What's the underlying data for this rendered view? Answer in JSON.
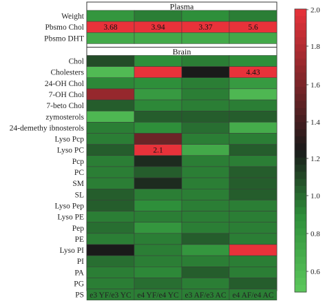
{
  "chart_data": {
    "type": "heatmap",
    "columns": [
      "e3 YF/e3 YC",
      "e4 YF/e4 YC",
      "e3 AF/e3 AC",
      "e4 AF/e4 AC"
    ],
    "sections": [
      {
        "title": "Plasma",
        "rows": [
          {
            "label": "Weight",
            "values": [
              0.85,
              0.95,
              0.9,
              0.95
            ]
          },
          {
            "label": "Pbsmo Chol",
            "values": [
              2.0,
              2.0,
              2.0,
              2.0
            ],
            "annotations": [
              "3.68",
              "3.94",
              "3.37",
              "5.6"
            ]
          },
          {
            "label": "Pbsmo DHT",
            "values": [
              0.72,
              0.72,
              0.72,
              0.72
            ]
          }
        ]
      },
      {
        "title": "Brain",
        "rows": [
          {
            "label": "Chol",
            "values": [
              1.1,
              0.9,
              0.95,
              0.9
            ]
          },
          {
            "label": "Cholesters",
            "values": [
              0.6,
              2.0,
              1.25,
              2.0
            ],
            "annotations": [
              "",
              "",
              "",
              "4.43"
            ]
          },
          {
            "label": "24-OH Chol",
            "values": [
              0.92,
              0.9,
              0.95,
              0.82
            ]
          },
          {
            "label": "7-OH Chol",
            "values": [
              1.7,
              0.82,
              0.95,
              0.62
            ]
          },
          {
            "label": "7-beto Chol",
            "values": [
              1.05,
              0.92,
              0.95,
              0.95
            ]
          },
          {
            "label": "zymosterols",
            "values": [
              0.62,
              1.05,
              1.05,
              1.05
            ]
          },
          {
            "label": "24-demethy ibnosterols",
            "values": [
              0.95,
              0.9,
              1.0,
              0.7
            ]
          },
          {
            "label": "Lyso Pcp",
            "values": [
              0.95,
              1.55,
              0.95,
              0.95
            ]
          },
          {
            "label": "Lyso PC",
            "values": [
              1.05,
              2.0,
              0.72,
              1.05
            ],
            "annotations": [
              "",
              "2.1",
              "",
              ""
            ]
          },
          {
            "label": "Pcp",
            "values": [
              0.95,
              1.2,
              0.95,
              0.95
            ]
          },
          {
            "label": "PC",
            "values": [
              0.95,
              1.05,
              0.95,
              1.05
            ]
          },
          {
            "label": "SM",
            "values": [
              0.95,
              1.2,
              0.95,
              1.05
            ]
          },
          {
            "label": "SL",
            "values": [
              1.05,
              0.95,
              0.95,
              1.05
            ]
          },
          {
            "label": "Lyso Pep",
            "values": [
              1.05,
              0.9,
              0.95,
              0.95
            ]
          },
          {
            "label": "Lyso PE",
            "values": [
              0.95,
              0.95,
              0.95,
              0.95
            ]
          },
          {
            "label": "Pep",
            "values": [
              1.0,
              0.85,
              0.95,
              0.95
            ]
          },
          {
            "label": "PE",
            "values": [
              0.95,
              0.95,
              1.05,
              0.95
            ]
          },
          {
            "label": "Lyso PI",
            "values": [
              1.25,
              0.95,
              0.85,
              2.0
            ]
          },
          {
            "label": "PI",
            "values": [
              1.0,
              0.95,
              0.95,
              0.95
            ]
          },
          {
            "label": "PA",
            "values": [
              0.95,
              0.92,
              1.05,
              0.95
            ]
          },
          {
            "label": "PG",
            "values": [
              0.95,
              1.0,
              0.95,
              1.05
            ]
          },
          {
            "label": "PS",
            "values": [
              0.95,
              0.95,
              0.95,
              0.95
            ]
          }
        ]
      }
    ],
    "colorbar": {
      "ticks": [
        "2.0",
        "1.8",
        "1.6",
        "1.4",
        "1.2",
        "1.0",
        "0.8",
        "0.6"
      ],
      "tick_values": [
        2.0,
        1.8,
        1.6,
        1.4,
        1.2,
        1.0,
        0.8,
        0.6
      ],
      "range": [
        0.5,
        2.0
      ],
      "colors": {
        "low": "#5cc85c",
        "mid": "#1a1a1a",
        "high": "#e8323a"
      }
    }
  }
}
